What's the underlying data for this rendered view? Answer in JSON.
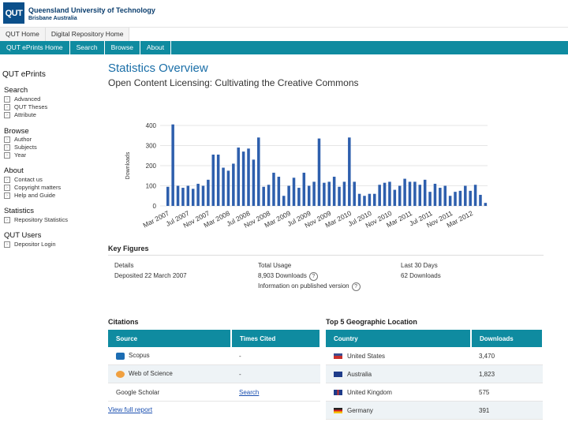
{
  "header": {
    "logo_text": "QUT",
    "university_name": "Queensland University of Technology",
    "location": "Brisbane Australia"
  },
  "topnav": [
    "QUT Home",
    "Digital Repository Home"
  ],
  "subnav": [
    "QUT ePrints Home",
    "Search",
    "Browse",
    "About"
  ],
  "sidebar": {
    "title": "QUT ePrints",
    "sections": [
      {
        "label": "Search",
        "items": [
          "Advanced",
          "QUT Theses",
          "Attribute"
        ]
      },
      {
        "label": "Browse",
        "items": [
          "Author",
          "Subjects",
          "Year"
        ]
      },
      {
        "label": "About",
        "items": [
          "Contact us",
          "Copyright matters",
          "Help and Guide"
        ]
      },
      {
        "label": "Statistics",
        "items": [
          "Repository Statistics"
        ]
      },
      {
        "label": "QUT Users",
        "items": [
          "Depositor Login"
        ]
      }
    ]
  },
  "page": {
    "title": "Statistics Overview",
    "subtitle": "Open Content Licensing: Cultivating the Creative Commons"
  },
  "chart_data": {
    "type": "bar",
    "ylabel": "Downloads",
    "ylim": [
      0,
      400
    ],
    "yticks": [
      "0",
      "100",
      "200",
      "300",
      "400"
    ],
    "values": [
      95,
      405,
      100,
      90,
      100,
      85,
      110,
      100,
      130,
      255,
      255,
      190,
      175,
      210,
      290,
      270,
      285,
      230,
      340,
      95,
      105,
      165,
      145,
      50,
      100,
      140,
      90,
      165,
      100,
      120,
      335,
      115,
      120,
      145,
      95,
      120,
      340,
      120,
      60,
      50,
      60,
      60,
      105,
      115,
      120,
      80,
      100,
      135,
      120,
      120,
      105,
      130,
      70,
      110,
      90,
      100,
      50,
      70,
      75,
      100,
      75,
      105,
      55,
      15
    ],
    "xtick_labels": [
      "Mar 2007",
      "Jul 2007",
      "Nov 2007",
      "Mar 2008",
      "Jul 2008",
      "Nov 2008",
      "Mar 2009",
      "Jul 2009",
      "Nov 2009",
      "Mar 2010",
      "Jul 2010",
      "Nov 2010",
      "Mar 2011",
      "Jul 2011",
      "Nov 2011",
      "Mar 2012"
    ],
    "color": "#2e5fad"
  },
  "key_figures": {
    "title": "Key Figures",
    "details_label": "Details",
    "deposited": "Deposited 22 March 2007",
    "total_label": "Total Usage",
    "total_value": "8,903 Downloads",
    "info_text": "Information on published version",
    "last_label": "Last 30 Days",
    "last_value": "62 Downloads"
  },
  "citations": {
    "title": "Citations",
    "headers": [
      "Source",
      "Times Cited"
    ],
    "rows": [
      {
        "source": "Scopus",
        "cited": "-"
      },
      {
        "source": "Web of Science",
        "cited": "-"
      },
      {
        "source": "Google Scholar",
        "cited": "Search"
      }
    ],
    "full_report": "View full report"
  },
  "geo": {
    "title": "Top 5 Geographic Location",
    "headers": [
      "Country",
      "Downloads"
    ],
    "rows": [
      {
        "country": "United States",
        "downloads": "3,470"
      },
      {
        "country": "Australia",
        "downloads": "1,823"
      },
      {
        "country": "United Kingdom",
        "downloads": "575"
      },
      {
        "country": "Germany",
        "downloads": "391"
      }
    ]
  }
}
